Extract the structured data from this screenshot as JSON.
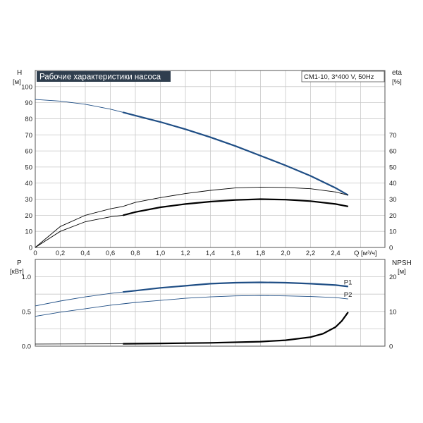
{
  "chart_data": [
    {
      "type": "line",
      "title": "Рабочие характеристики насоса",
      "model_label": "CM1-10, 3*400 V, 50Hz",
      "y_axis_name": "H",
      "y_axis_unit": "[м]",
      "y2_axis_name": "eta",
      "y2_axis_unit": "[%]",
      "x_axis_label": "Q [м³/ч]",
      "xlim": [
        0,
        2.7
      ],
      "ylim": [
        0,
        110
      ],
      "y2lim": [
        0,
        110
      ],
      "x_ticks": [
        "0",
        "0,2",
        "0,4",
        "0,6",
        "0,8",
        "1,0",
        "1,2",
        "1,4",
        "1,6",
        "1,8",
        "2,0",
        "2,2",
        "2,4"
      ],
      "y_ticks": [
        "0",
        "10",
        "20",
        "30",
        "40",
        "50",
        "60",
        "70",
        "80",
        "90",
        "100"
      ],
      "y2_ticks": [
        "0",
        "10",
        "20",
        "30",
        "40",
        "50",
        "60",
        "70"
      ],
      "grid": true,
      "series": [
        {
          "color": "#1f4e85",
          "x": [
            0,
            0.2,
            0.4,
            0.6,
            0.7,
            0.8,
            1.0,
            1.2,
            1.4,
            1.6,
            1.8,
            2.0,
            2.2,
            2.4,
            2.5
          ],
          "values": [
            92,
            91,
            89,
            86,
            84,
            82,
            78,
            73.5,
            68.5,
            63,
            57,
            51,
            44.5,
            37,
            32.5
          ],
          "highlight_from": 0.7,
          "highlight_to": 2.5
        },
        {
          "color": "#000000",
          "x": [
            0,
            0.2,
            0.4,
            0.6,
            0.7,
            0.8,
            1.0,
            1.2,
            1.4,
            1.6,
            1.8,
            2.0,
            2.2,
            2.4,
            2.5
          ],
          "values": [
            0,
            13,
            20,
            24,
            25.5,
            28,
            31,
            33.5,
            35.5,
            37,
            37.5,
            37.3,
            36.5,
            34.5,
            32.5
          ],
          "highlight_from": null,
          "highlight_to": null
        },
        {
          "color": "#000000",
          "x": [
            0,
            0.2,
            0.4,
            0.6,
            0.7,
            0.8,
            1.0,
            1.2,
            1.4,
            1.6,
            1.8,
            2.0,
            2.2,
            2.4,
            2.5
          ],
          "values": [
            0,
            10,
            16,
            19,
            20,
            22,
            25,
            27,
            28.5,
            29.5,
            30,
            29.7,
            28.8,
            27,
            25.5
          ],
          "highlight_from": 0.7,
          "highlight_to": 2.5
        }
      ]
    },
    {
      "type": "line",
      "y_axis_name": "P",
      "y_axis_unit": "[кВт]",
      "y2_axis_name": "NPSH",
      "y2_axis_unit": "[м]",
      "xlim": [
        0,
        2.7
      ],
      "ylim": [
        0,
        1.25
      ],
      "y2lim": [
        0,
        25
      ],
      "y_ticks": [
        "0.0",
        "0.5",
        "1.0"
      ],
      "y_tick_values": [
        0,
        0.5,
        1.0
      ],
      "y2_ticks": [
        "0",
        "10",
        "20"
      ],
      "y2_tick_values": [
        0,
        10,
        20
      ],
      "grid": true,
      "series": [
        {
          "name": "P1",
          "color": "#1f4e85",
          "axis": "left",
          "x": [
            0,
            0.2,
            0.4,
            0.6,
            0.7,
            0.8,
            1.0,
            1.2,
            1.4,
            1.6,
            1.8,
            2.0,
            2.2,
            2.4,
            2.5
          ],
          "values": [
            0.58,
            0.65,
            0.71,
            0.76,
            0.78,
            0.8,
            0.84,
            0.87,
            0.9,
            0.915,
            0.92,
            0.915,
            0.9,
            0.88,
            0.86
          ],
          "highlight_from": 0.7,
          "highlight_to": 2.5
        },
        {
          "name": "P2",
          "color": "#1f4e85",
          "axis": "left",
          "x": [
            0,
            0.2,
            0.4,
            0.6,
            0.7,
            0.8,
            1.0,
            1.2,
            1.4,
            1.6,
            1.8,
            2.0,
            2.2,
            2.4,
            2.5
          ],
          "values": [
            0.43,
            0.49,
            0.54,
            0.59,
            0.61,
            0.63,
            0.66,
            0.69,
            0.71,
            0.725,
            0.73,
            0.725,
            0.715,
            0.7,
            0.68
          ],
          "highlight_from": null,
          "highlight_to": null
        },
        {
          "color": "#000000",
          "axis": "right",
          "x": [
            0,
            0.7,
            1.0,
            1.4,
            1.8,
            2.0,
            2.2,
            2.3,
            2.4,
            2.45,
            2.5
          ],
          "values": [
            0.6,
            0.7,
            0.8,
            0.95,
            1.3,
            1.7,
            2.6,
            3.6,
            5.5,
            7.3,
            9.8
          ],
          "highlight_from": 0.7,
          "highlight_to": 2.5
        }
      ]
    }
  ]
}
